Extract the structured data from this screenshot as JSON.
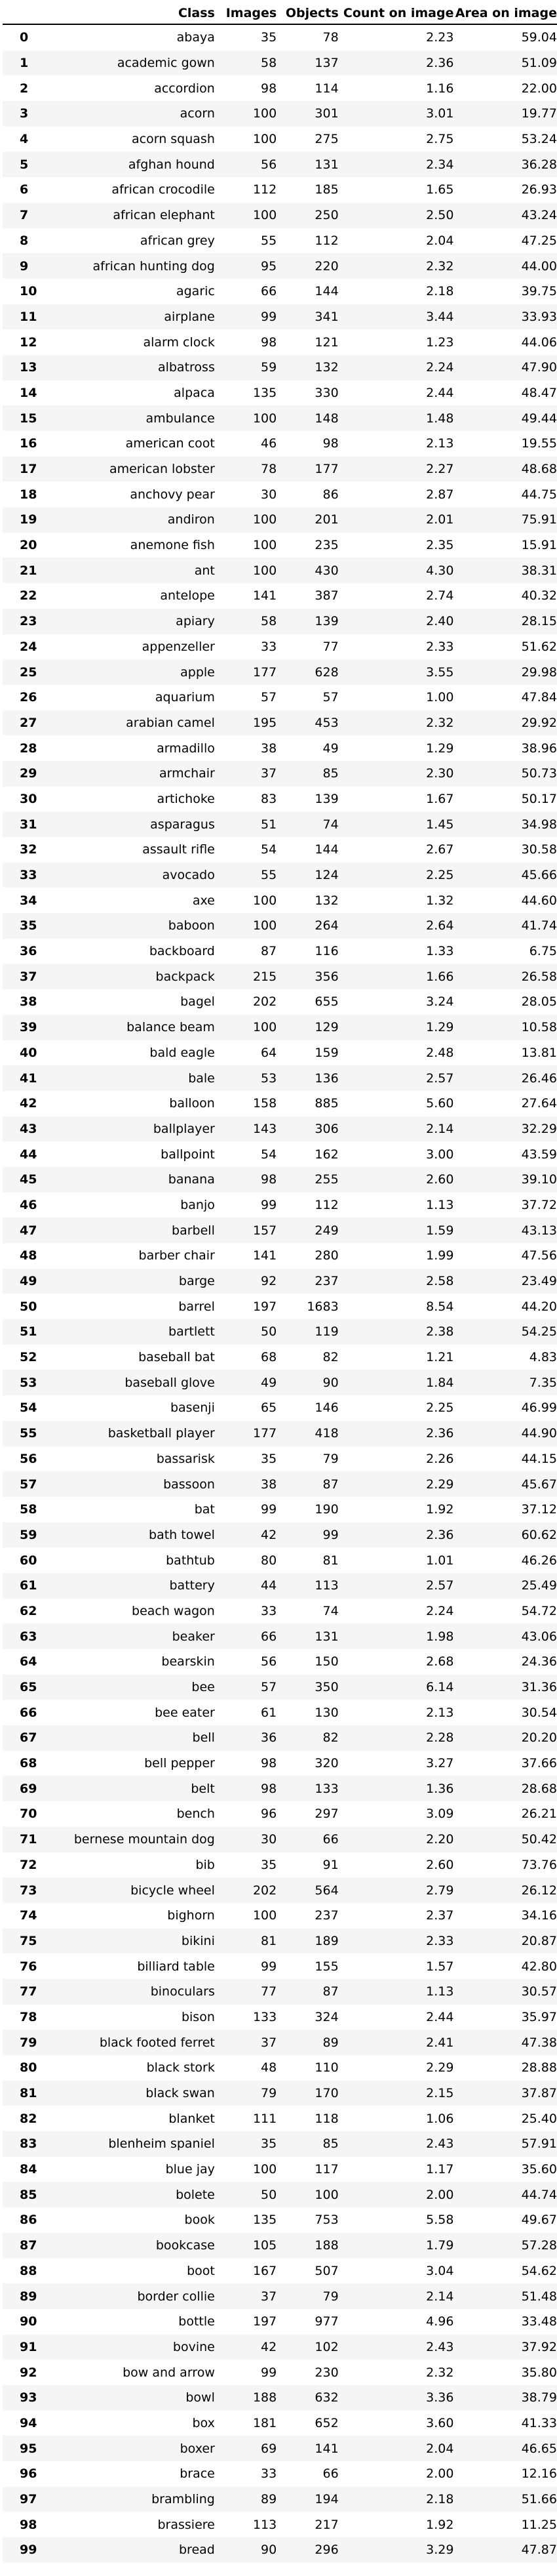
{
  "table": {
    "columns": [
      "",
      "Class",
      "Images",
      "Objects",
      "Count on image",
      "Area on image"
    ],
    "rows": [
      [
        "0",
        "abaya",
        "35",
        "78",
        "2.23",
        "59.04"
      ],
      [
        "1",
        "academic gown",
        "58",
        "137",
        "2.36",
        "51.09"
      ],
      [
        "2",
        "accordion",
        "98",
        "114",
        "1.16",
        "22.00"
      ],
      [
        "3",
        "acorn",
        "100",
        "301",
        "3.01",
        "19.77"
      ],
      [
        "4",
        "acorn squash",
        "100",
        "275",
        "2.75",
        "53.24"
      ],
      [
        "5",
        "afghan hound",
        "56",
        "131",
        "2.34",
        "36.28"
      ],
      [
        "6",
        "african crocodile",
        "112",
        "185",
        "1.65",
        "26.93"
      ],
      [
        "7",
        "african elephant",
        "100",
        "250",
        "2.50",
        "43.24"
      ],
      [
        "8",
        "african grey",
        "55",
        "112",
        "2.04",
        "47.25"
      ],
      [
        "9",
        "african hunting dog",
        "95",
        "220",
        "2.32",
        "44.00"
      ],
      [
        "10",
        "agaric",
        "66",
        "144",
        "2.18",
        "39.75"
      ],
      [
        "11",
        "airplane",
        "99",
        "341",
        "3.44",
        "33.93"
      ],
      [
        "12",
        "alarm clock",
        "98",
        "121",
        "1.23",
        "44.06"
      ],
      [
        "13",
        "albatross",
        "59",
        "132",
        "2.24",
        "47.90"
      ],
      [
        "14",
        "alpaca",
        "135",
        "330",
        "2.44",
        "48.47"
      ],
      [
        "15",
        "ambulance",
        "100",
        "148",
        "1.48",
        "49.44"
      ],
      [
        "16",
        "american coot",
        "46",
        "98",
        "2.13",
        "19.55"
      ],
      [
        "17",
        "american lobster",
        "78",
        "177",
        "2.27",
        "48.68"
      ],
      [
        "18",
        "anchovy pear",
        "30",
        "86",
        "2.87",
        "44.75"
      ],
      [
        "19",
        "andiron",
        "100",
        "201",
        "2.01",
        "75.91"
      ],
      [
        "20",
        "anemone fish",
        "100",
        "235",
        "2.35",
        "15.91"
      ],
      [
        "21",
        "ant",
        "100",
        "430",
        "4.30",
        "38.31"
      ],
      [
        "22",
        "antelope",
        "141",
        "387",
        "2.74",
        "40.32"
      ],
      [
        "23",
        "apiary",
        "58",
        "139",
        "2.40",
        "28.15"
      ],
      [
        "24",
        "appenzeller",
        "33",
        "77",
        "2.33",
        "51.62"
      ],
      [
        "25",
        "apple",
        "177",
        "628",
        "3.55",
        "29.98"
      ],
      [
        "26",
        "aquarium",
        "57",
        "57",
        "1.00",
        "47.84"
      ],
      [
        "27",
        "arabian camel",
        "195",
        "453",
        "2.32",
        "29.92"
      ],
      [
        "28",
        "armadillo",
        "38",
        "49",
        "1.29",
        "38.96"
      ],
      [
        "29",
        "armchair",
        "37",
        "85",
        "2.30",
        "50.73"
      ],
      [
        "30",
        "artichoke",
        "83",
        "139",
        "1.67",
        "50.17"
      ],
      [
        "31",
        "asparagus",
        "51",
        "74",
        "1.45",
        "34.98"
      ],
      [
        "32",
        "assault rifle",
        "54",
        "144",
        "2.67",
        "30.58"
      ],
      [
        "33",
        "avocado",
        "55",
        "124",
        "2.25",
        "45.66"
      ],
      [
        "34",
        "axe",
        "100",
        "132",
        "1.32",
        "44.60"
      ],
      [
        "35",
        "baboon",
        "100",
        "264",
        "2.64",
        "41.74"
      ],
      [
        "36",
        "backboard",
        "87",
        "116",
        "1.33",
        "6.75"
      ],
      [
        "37",
        "backpack",
        "215",
        "356",
        "1.66",
        "26.58"
      ],
      [
        "38",
        "bagel",
        "202",
        "655",
        "3.24",
        "28.05"
      ],
      [
        "39",
        "balance beam",
        "100",
        "129",
        "1.29",
        "10.58"
      ],
      [
        "40",
        "bald eagle",
        "64",
        "159",
        "2.48",
        "13.81"
      ],
      [
        "41",
        "bale",
        "53",
        "136",
        "2.57",
        "26.46"
      ],
      [
        "42",
        "balloon",
        "158",
        "885",
        "5.60",
        "27.64"
      ],
      [
        "43",
        "ballplayer",
        "143",
        "306",
        "2.14",
        "32.29"
      ],
      [
        "44",
        "ballpoint",
        "54",
        "162",
        "3.00",
        "43.59"
      ],
      [
        "45",
        "banana",
        "98",
        "255",
        "2.60",
        "39.10"
      ],
      [
        "46",
        "banjo",
        "99",
        "112",
        "1.13",
        "37.72"
      ],
      [
        "47",
        "barbell",
        "157",
        "249",
        "1.59",
        "43.13"
      ],
      [
        "48",
        "barber chair",
        "141",
        "280",
        "1.99",
        "47.56"
      ],
      [
        "49",
        "barge",
        "92",
        "237",
        "2.58",
        "23.49"
      ],
      [
        "50",
        "barrel",
        "197",
        "1683",
        "8.54",
        "44.20"
      ],
      [
        "51",
        "bartlett",
        "50",
        "119",
        "2.38",
        "54.25"
      ],
      [
        "52",
        "baseball bat",
        "68",
        "82",
        "1.21",
        "4.83"
      ],
      [
        "53",
        "baseball glove",
        "49",
        "90",
        "1.84",
        "7.35"
      ],
      [
        "54",
        "basenji",
        "65",
        "146",
        "2.25",
        "46.99"
      ],
      [
        "55",
        "basketball player",
        "177",
        "418",
        "2.36",
        "44.90"
      ],
      [
        "56",
        "bassarisk",
        "35",
        "79",
        "2.26",
        "44.15"
      ],
      [
        "57",
        "bassoon",
        "38",
        "87",
        "2.29",
        "45.67"
      ],
      [
        "58",
        "bat",
        "99",
        "190",
        "1.92",
        "37.12"
      ],
      [
        "59",
        "bath towel",
        "42",
        "99",
        "2.36",
        "60.62"
      ],
      [
        "60",
        "bathtub",
        "80",
        "81",
        "1.01",
        "46.26"
      ],
      [
        "61",
        "battery",
        "44",
        "113",
        "2.57",
        "25.49"
      ],
      [
        "62",
        "beach wagon",
        "33",
        "74",
        "2.24",
        "54.72"
      ],
      [
        "63",
        "beaker",
        "66",
        "131",
        "1.98",
        "43.06"
      ],
      [
        "64",
        "bearskin",
        "56",
        "150",
        "2.68",
        "24.36"
      ],
      [
        "65",
        "bee",
        "57",
        "350",
        "6.14",
        "31.36"
      ],
      [
        "66",
        "bee eater",
        "61",
        "130",
        "2.13",
        "30.54"
      ],
      [
        "67",
        "bell",
        "36",
        "82",
        "2.28",
        "20.20"
      ],
      [
        "68",
        "bell pepper",
        "98",
        "320",
        "3.27",
        "37.66"
      ],
      [
        "69",
        "belt",
        "98",
        "133",
        "1.36",
        "28.68"
      ],
      [
        "70",
        "bench",
        "96",
        "297",
        "3.09",
        "26.21"
      ],
      [
        "71",
        "bernese mountain dog",
        "30",
        "66",
        "2.20",
        "50.42"
      ],
      [
        "72",
        "bib",
        "35",
        "91",
        "2.60",
        "73.76"
      ],
      [
        "73",
        "bicycle wheel",
        "202",
        "564",
        "2.79",
        "26.12"
      ],
      [
        "74",
        "bighorn",
        "100",
        "237",
        "2.37",
        "34.16"
      ],
      [
        "75",
        "bikini",
        "81",
        "189",
        "2.33",
        "20.87"
      ],
      [
        "76",
        "billiard table",
        "99",
        "155",
        "1.57",
        "42.80"
      ],
      [
        "77",
        "binoculars",
        "77",
        "87",
        "1.13",
        "30.57"
      ],
      [
        "78",
        "bison",
        "133",
        "324",
        "2.44",
        "35.97"
      ],
      [
        "79",
        "black footed ferret",
        "37",
        "89",
        "2.41",
        "47.38"
      ],
      [
        "80",
        "black stork",
        "48",
        "110",
        "2.29",
        "28.88"
      ],
      [
        "81",
        "black swan",
        "79",
        "170",
        "2.15",
        "37.87"
      ],
      [
        "82",
        "blanket",
        "111",
        "118",
        "1.06",
        "25.40"
      ],
      [
        "83",
        "blenheim spaniel",
        "35",
        "85",
        "2.43",
        "57.91"
      ],
      [
        "84",
        "blue jay",
        "100",
        "117",
        "1.17",
        "35.60"
      ],
      [
        "85",
        "bolete",
        "50",
        "100",
        "2.00",
        "44.74"
      ],
      [
        "86",
        "book",
        "135",
        "753",
        "5.58",
        "49.67"
      ],
      [
        "87",
        "bookcase",
        "105",
        "188",
        "1.79",
        "57.28"
      ],
      [
        "88",
        "boot",
        "167",
        "507",
        "3.04",
        "54.62"
      ],
      [
        "89",
        "border collie",
        "37",
        "79",
        "2.14",
        "51.48"
      ],
      [
        "90",
        "bottle",
        "197",
        "977",
        "4.96",
        "33.48"
      ],
      [
        "91",
        "bovine",
        "42",
        "102",
        "2.43",
        "37.92"
      ],
      [
        "92",
        "bow and arrow",
        "99",
        "230",
        "2.32",
        "35.80"
      ],
      [
        "93",
        "bowl",
        "188",
        "632",
        "3.36",
        "38.79"
      ],
      [
        "94",
        "box",
        "181",
        "652",
        "3.60",
        "41.33"
      ],
      [
        "95",
        "boxer",
        "69",
        "141",
        "2.04",
        "46.65"
      ],
      [
        "96",
        "brace",
        "33",
        "66",
        "2.00",
        "12.16"
      ],
      [
        "97",
        "brambling",
        "89",
        "194",
        "2.18",
        "51.66"
      ],
      [
        "98",
        "brassiere",
        "113",
        "217",
        "1.92",
        "11.25"
      ],
      [
        "99",
        "bread",
        "90",
        "296",
        "3.29",
        "47.87"
      ]
    ]
  }
}
